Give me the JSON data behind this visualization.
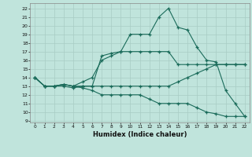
{
  "xlabel": "Humidex (Indice chaleur)",
  "bg_color": "#c0e4dc",
  "grid_color": "#a8ccc4",
  "line_color": "#1a6b5a",
  "xlim": [
    -0.5,
    22.5
  ],
  "ylim": [
    8.8,
    22.6
  ],
  "yticks": [
    9,
    10,
    11,
    12,
    13,
    14,
    15,
    16,
    17,
    18,
    19,
    20,
    21,
    22
  ],
  "xticks": [
    0,
    1,
    2,
    3,
    4,
    5,
    6,
    7,
    8,
    9,
    10,
    11,
    12,
    13,
    14,
    15,
    16,
    17,
    18,
    19,
    20,
    21,
    22
  ],
  "line1_x": [
    0,
    1,
    2,
    3,
    4,
    5,
    6,
    7,
    8,
    9,
    10,
    11,
    12,
    13,
    14,
    15,
    16,
    17,
    18,
    19,
    20,
    21,
    22
  ],
  "line1_y": [
    14,
    13,
    13,
    13,
    12.8,
    13,
    13,
    16.5,
    16.8,
    17,
    19,
    19,
    19,
    21,
    22,
    19.8,
    19.5,
    17.5,
    16,
    15.8,
    12.5,
    11,
    9.5
  ],
  "line2_x": [
    0,
    1,
    2,
    3,
    4,
    5,
    6,
    7,
    8,
    9,
    10,
    11,
    12,
    13,
    14,
    15,
    16,
    17,
    18,
    19,
    20,
    21,
    22
  ],
  "line2_y": [
    14,
    13,
    13,
    13.2,
    13,
    13.5,
    14,
    16,
    16.5,
    17,
    17,
    17,
    17,
    17,
    17,
    15.5,
    15.5,
    15.5,
    15.5,
    15.5,
    15.5,
    15.5,
    15.5
  ],
  "line3_x": [
    0,
    1,
    2,
    3,
    4,
    5,
    6,
    7,
    8,
    9,
    10,
    11,
    12,
    13,
    14,
    15,
    16,
    17,
    18,
    19,
    20,
    21,
    22
  ],
  "line3_y": [
    14,
    13,
    13,
    13.2,
    13,
    13,
    13,
    13,
    13,
    13,
    13,
    13,
    13,
    13,
    13,
    13.5,
    14,
    14.5,
    15,
    15.5,
    15.5,
    15.5,
    15.5
  ],
  "line4_x": [
    0,
    1,
    2,
    3,
    4,
    5,
    6,
    7,
    8,
    9,
    10,
    11,
    12,
    13,
    14,
    15,
    16,
    17,
    18,
    19,
    20,
    21,
    22
  ],
  "line4_y": [
    14,
    13,
    13,
    13.2,
    13,
    12.8,
    12.5,
    12,
    12,
    12,
    12,
    12,
    11.5,
    11,
    11,
    11,
    11,
    10.5,
    10,
    9.8,
    9.5,
    9.5,
    9.5
  ]
}
